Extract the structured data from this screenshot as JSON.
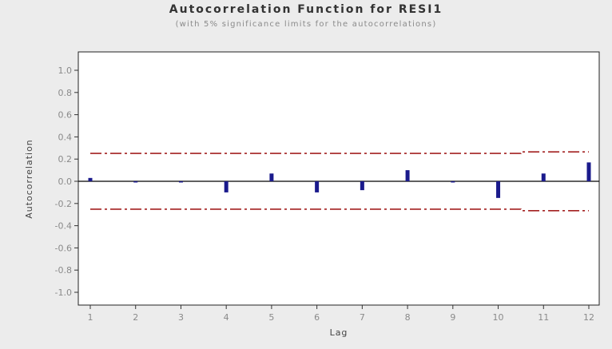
{
  "chart_data": {
    "type": "bar",
    "title": "Autocorrelation Function for RESI1",
    "subtitle": "(with 5% significance limits for the autocorrelations)",
    "xlabel": "Lag",
    "ylabel": "Autocorrelation",
    "xlim": [
      1,
      12
    ],
    "ylim": [
      -1.0,
      1.0
    ],
    "x_ticks": [
      1,
      2,
      3,
      4,
      5,
      6,
      7,
      8,
      9,
      10,
      11,
      12
    ],
    "y_ticks": [
      "1.0",
      "0.8",
      "0.6",
      "0.4",
      "0.2",
      "0.0",
      "-0.2",
      "-0.4",
      "-0.6",
      "-0.8",
      "-1.0"
    ],
    "y_tick_values": [
      1.0,
      0.8,
      0.6,
      0.4,
      0.2,
      0.0,
      -0.2,
      -0.4,
      -0.6,
      -0.8,
      -1.0
    ],
    "lags": [
      1,
      2,
      3,
      4,
      5,
      6,
      7,
      8,
      9,
      10,
      11,
      12
    ],
    "acf": [
      0.03,
      -0.01,
      -0.01,
      -0.1,
      0.07,
      -0.1,
      -0.08,
      0.1,
      -0.01,
      -0.15,
      0.07,
      0.17
    ],
    "significance_limits": {
      "upper": [
        0.251,
        0.251,
        0.251,
        0.251,
        0.251,
        0.251,
        0.251,
        0.251,
        0.251,
        0.251,
        0.265,
        0.265
      ],
      "lower": [
        -0.251,
        -0.251,
        -0.251,
        -0.251,
        -0.251,
        -0.251,
        -0.251,
        -0.251,
        -0.251,
        -0.251,
        -0.265,
        -0.265
      ]
    },
    "grid": false,
    "colors": {
      "bars": "#1a1a8c",
      "limits": "#a32020",
      "zero_line": "#000000",
      "frame": "#222222",
      "plot_bg": "#ffffff"
    }
  }
}
